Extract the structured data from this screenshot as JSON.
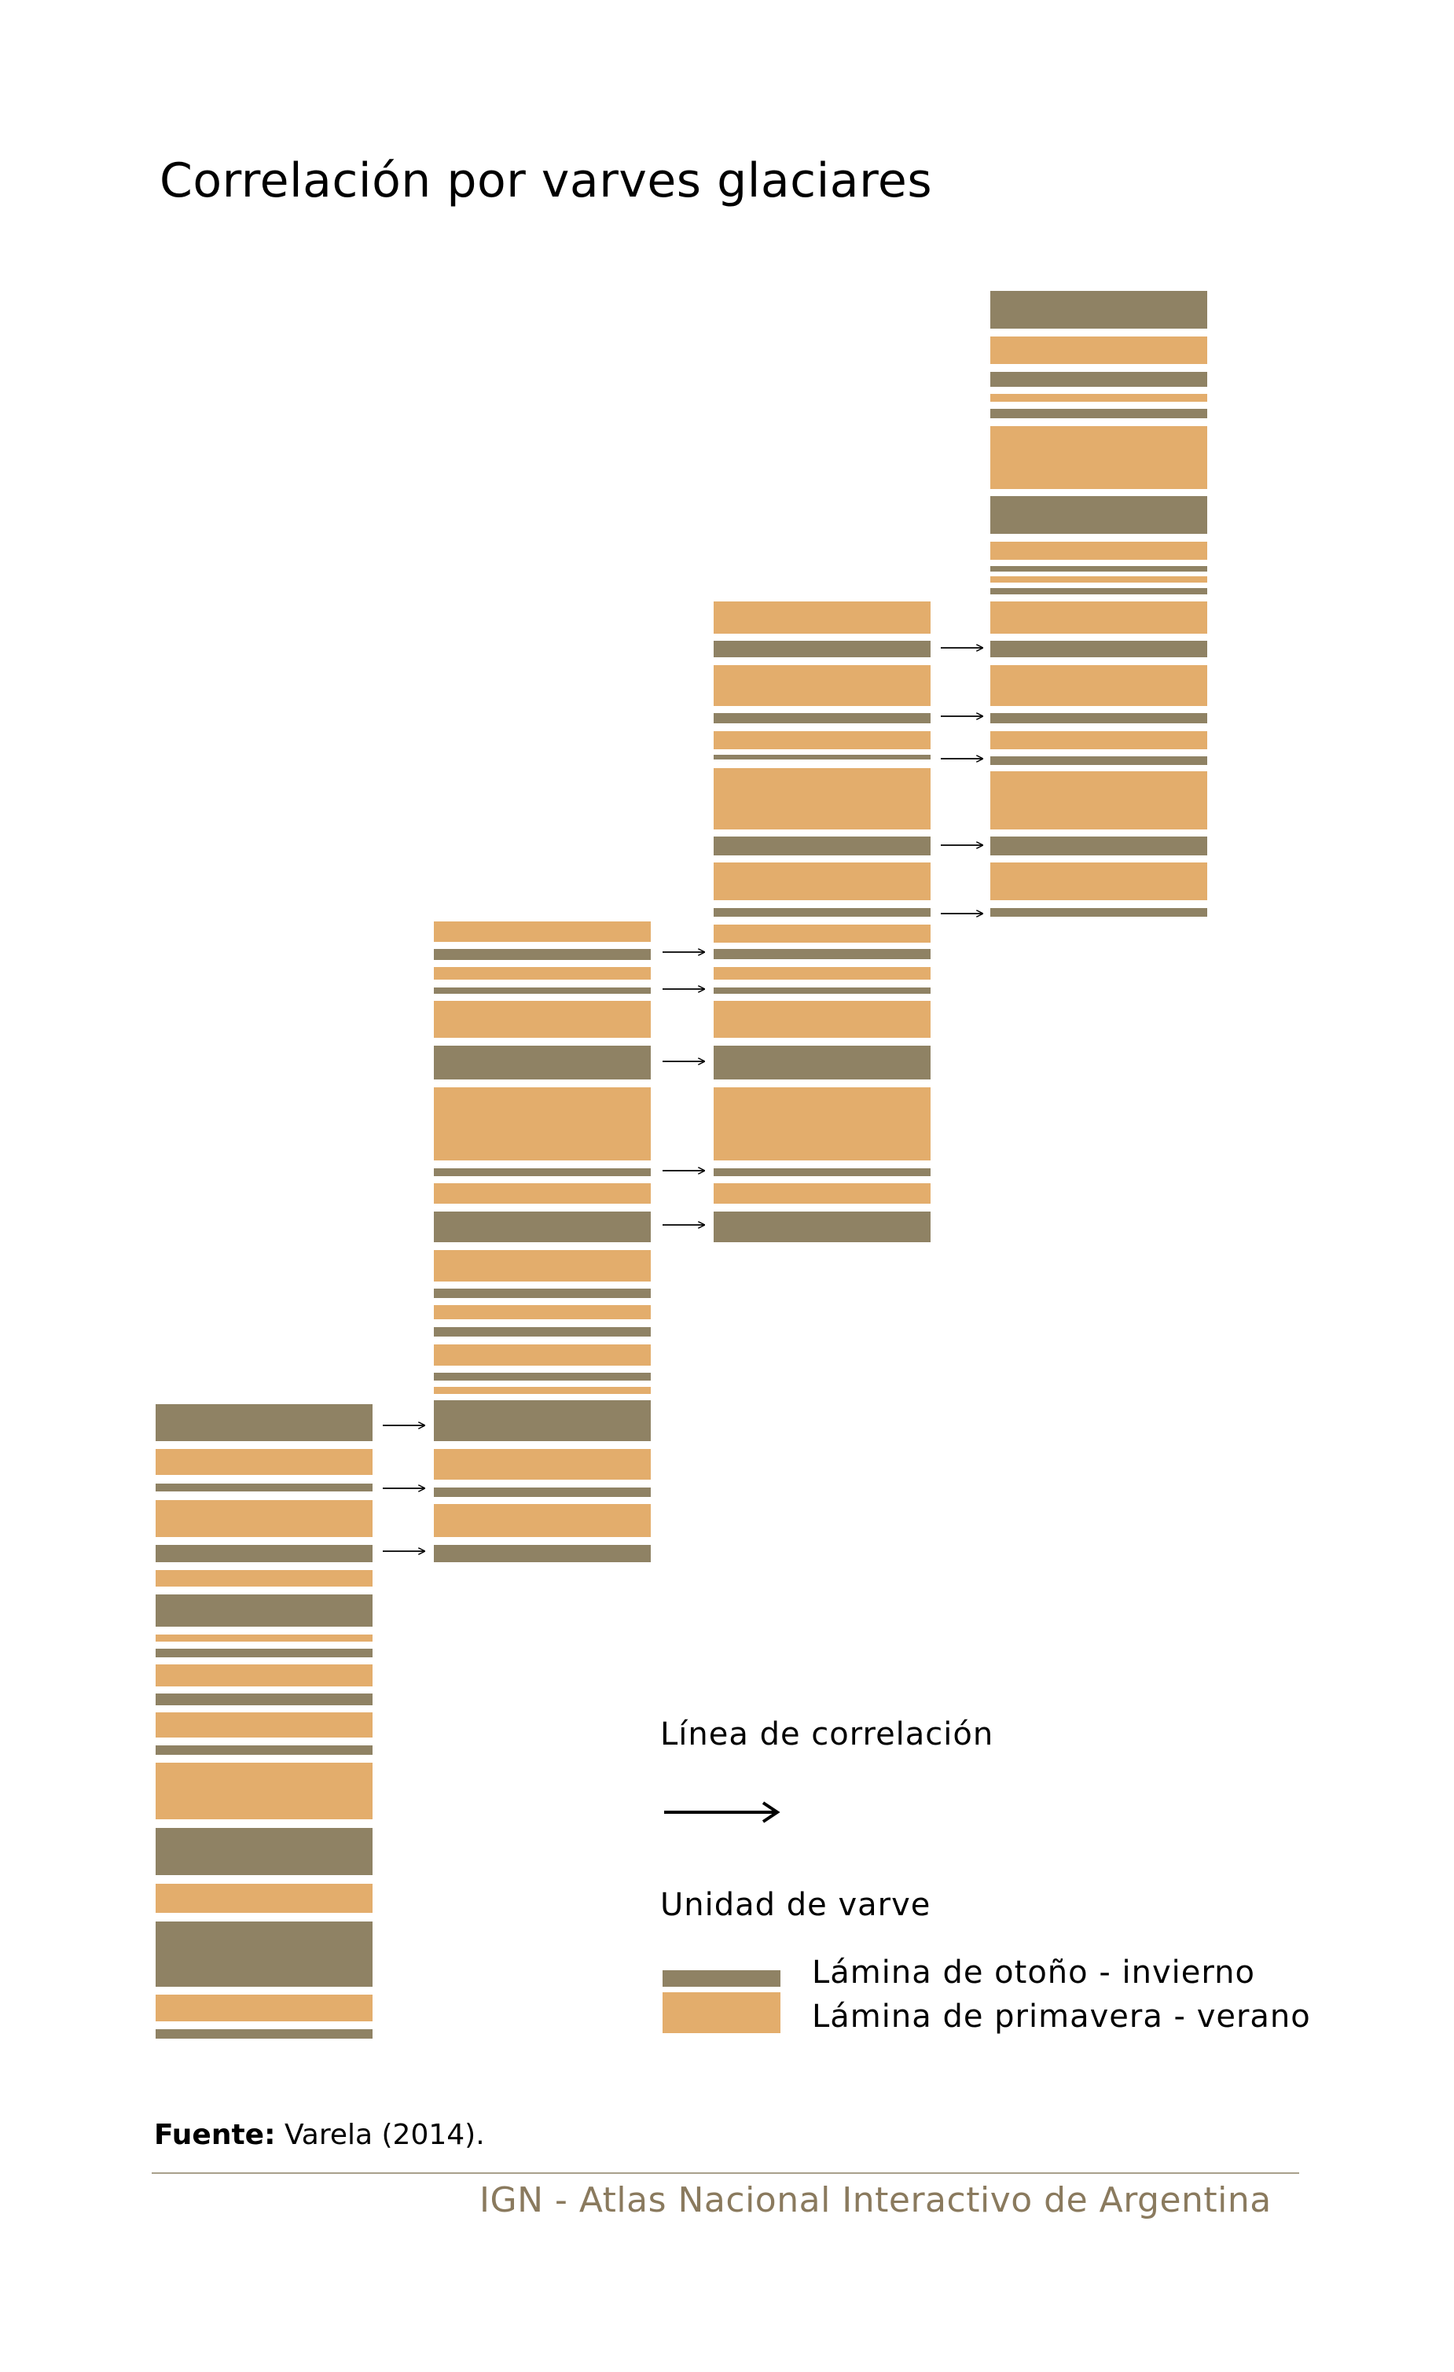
{
  "title": "Correlación por varves glaciares",
  "colors": {
    "otono_invierno": "#8f8264",
    "primavera_verano": "#e3ad6c",
    "arrow": "#000000",
    "footer": "#8a7a5e"
  },
  "legend": {
    "line_label": "Línea de correlación",
    "unit_label": "Unidad de varve",
    "otono_label": "Lámina de otoño - invierno",
    "primavera_label": "Lámina de primavera - verano"
  },
  "source": {
    "label": "Fuente:",
    "text": "Varela (2014)."
  },
  "footer": "IGN - Atlas Nacional Interactivo de Argentina"
}
